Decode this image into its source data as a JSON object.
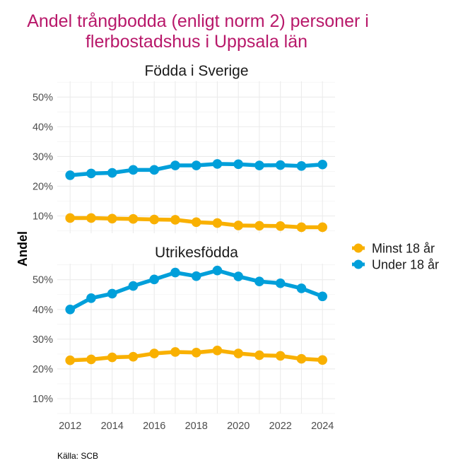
{
  "chart_data": {
    "type": "line",
    "title": "Andel trångbodda (enligt norm 2) personer i\nflerbostadshus i Uppsala län",
    "title_lines": [
      "Andel trångbodda (enligt norm 2) personer i",
      "flerbostadshus i Uppsala län"
    ],
    "xlabel": "",
    "ylabel": "Andel",
    "caption": "Källa: SCB",
    "x": [
      2012,
      2013,
      2014,
      2015,
      2016,
      2017,
      2018,
      2019,
      2020,
      2021,
      2022,
      2023,
      2024
    ],
    "x_ticks": [
      "2012",
      "2014",
      "2016",
      "2018",
      "2020",
      "2022",
      "2024"
    ],
    "y_ticks": [
      "10%",
      "20%",
      "30%",
      "40%",
      "50%"
    ],
    "ylim": [
      4.5,
      55.3
    ],
    "grid": true,
    "legend": {
      "placement": "right",
      "entries": [
        {
          "name": "Minst 18 år",
          "color": "#F9B000"
        },
        {
          "name": "Under 18 år",
          "color": "#009FDA"
        }
      ]
    },
    "panels": [
      {
        "title": "Födda i Sverige",
        "series": [
          {
            "name": "Minst 18 år",
            "color": "#F9B000",
            "values": [
              9.3,
              9.3,
              9.1,
              9.0,
              8.8,
              8.7,
              7.9,
              7.6,
              6.8,
              6.7,
              6.6,
              6.2,
              6.2
            ]
          },
          {
            "name": "Under 18 år",
            "color": "#009FDA",
            "values": [
              23.7,
              24.3,
              24.5,
              25.5,
              25.5,
              27.0,
              27.0,
              27.5,
              27.4,
              27.0,
              27.1,
              26.8,
              27.3
            ]
          }
        ]
      },
      {
        "title": "Utrikesfödda",
        "series": [
          {
            "name": "Minst 18 år",
            "color": "#F9B000",
            "values": [
              22.9,
              23.2,
              23.9,
              24.1,
              25.2,
              25.7,
              25.5,
              26.2,
              25.2,
              24.6,
              24.4,
              23.4,
              23.0
            ]
          },
          {
            "name": "Under 18 år",
            "color": "#009FDA",
            "values": [
              40.0,
              43.8,
              45.3,
              47.9,
              50.1,
              52.4,
              51.2,
              53.1,
              51.1,
              49.4,
              48.8,
              47.1,
              44.4
            ]
          }
        ]
      }
    ]
  }
}
